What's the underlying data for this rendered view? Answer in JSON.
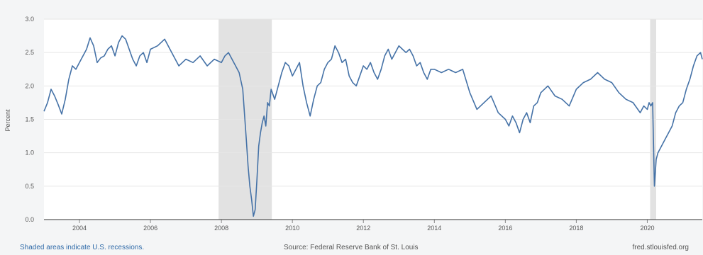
{
  "chart_data": {
    "type": "line",
    "ylabel": "Percent",
    "ylim": [
      0,
      3.0
    ],
    "y_ticks": [
      "0.0",
      "0.5",
      "1.0",
      "1.5",
      "2.0",
      "2.5",
      "3.0"
    ],
    "x_ticks": [
      "2004",
      "2006",
      "2008",
      "2010",
      "2012",
      "2014",
      "2016",
      "2018",
      "2020"
    ],
    "xlim": [
      2003.0,
      2021.55
    ],
    "grid": true,
    "line_color": "#4572a7",
    "recession_color": "#e2e2e2",
    "recessions": [
      [
        2007.92,
        2009.42
      ],
      [
        2020.08,
        2020.25
      ]
    ],
    "series": [
      {
        "x": [
          2003.0,
          2003.1,
          2003.2,
          2003.3,
          2003.4,
          2003.5,
          2003.6,
          2003.7,
          2003.8,
          2003.9,
          2004.0,
          2004.1,
          2004.2,
          2004.3,
          2004.4,
          2004.5,
          2004.6,
          2004.7,
          2004.8,
          2004.9,
          2005.0,
          2005.1,
          2005.2,
          2005.3,
          2005.4,
          2005.5,
          2005.6,
          2005.7,
          2005.8,
          2005.9,
          2006.0,
          2006.2,
          2006.4,
          2006.6,
          2006.8,
          2007.0,
          2007.2,
          2007.4,
          2007.6,
          2007.8,
          2008.0,
          2008.1,
          2008.2,
          2008.3,
          2008.4,
          2008.5,
          2008.6,
          2008.7,
          2008.75,
          2008.8,
          2008.85,
          2008.9,
          2008.95,
          2009.0,
          2009.05,
          2009.1,
          2009.15,
          2009.2,
          2009.25,
          2009.3,
          2009.35,
          2009.4,
          2009.5,
          2009.6,
          2009.7,
          2009.8,
          2009.9,
          2010.0,
          2010.1,
          2010.2,
          2010.3,
          2010.4,
          2010.5,
          2010.6,
          2010.7,
          2010.8,
          2010.9,
          2011.0,
          2011.1,
          2011.2,
          2011.3,
          2011.4,
          2011.5,
          2011.6,
          2011.7,
          2011.8,
          2011.9,
          2012.0,
          2012.1,
          2012.2,
          2012.3,
          2012.4,
          2012.5,
          2012.6,
          2012.7,
          2012.8,
          2012.9,
          2013.0,
          2013.1,
          2013.2,
          2013.3,
          2013.4,
          2013.5,
          2013.6,
          2013.7,
          2013.8,
          2013.9,
          2014.0,
          2014.2,
          2014.4,
          2014.6,
          2014.8,
          2015.0,
          2015.2,
          2015.4,
          2015.6,
          2015.8,
          2016.0,
          2016.1,
          2016.2,
          2016.3,
          2016.4,
          2016.5,
          2016.6,
          2016.7,
          2016.8,
          2016.9,
          2017.0,
          2017.2,
          2017.4,
          2017.6,
          2017.8,
          2018.0,
          2018.2,
          2018.4,
          2018.6,
          2018.8,
          2019.0,
          2019.2,
          2019.4,
          2019.6,
          2019.8,
          2019.9,
          2020.0,
          2020.05,
          2020.1,
          2020.15,
          2020.2,
          2020.25,
          2020.3,
          2020.4,
          2020.5,
          2020.6,
          2020.7,
          2020.8,
          2020.9,
          2021.0,
          2021.1,
          2021.2,
          2021.3,
          2021.4,
          2021.5,
          2021.55
        ],
        "y": [
          1.62,
          1.75,
          1.95,
          1.85,
          1.72,
          1.58,
          1.8,
          2.1,
          2.3,
          2.25,
          2.35,
          2.45,
          2.55,
          2.72,
          2.6,
          2.35,
          2.42,
          2.45,
          2.55,
          2.6,
          2.45,
          2.65,
          2.75,
          2.7,
          2.55,
          2.4,
          2.3,
          2.45,
          2.5,
          2.35,
          2.55,
          2.6,
          2.7,
          2.5,
          2.3,
          2.4,
          2.35,
          2.45,
          2.3,
          2.4,
          2.35,
          2.45,
          2.5,
          2.4,
          2.3,
          2.2,
          1.95,
          1.2,
          0.8,
          0.5,
          0.3,
          0.05,
          0.15,
          0.6,
          1.1,
          1.3,
          1.45,
          1.55,
          1.4,
          1.75,
          1.7,
          1.95,
          1.8,
          2.0,
          2.2,
          2.35,
          2.3,
          2.15,
          2.25,
          2.35,
          2.0,
          1.75,
          1.55,
          1.8,
          2.0,
          2.05,
          2.25,
          2.35,
          2.4,
          2.6,
          2.5,
          2.35,
          2.4,
          2.15,
          2.05,
          2.0,
          2.15,
          2.3,
          2.25,
          2.35,
          2.2,
          2.1,
          2.25,
          2.45,
          2.55,
          2.4,
          2.5,
          2.6,
          2.55,
          2.5,
          2.55,
          2.45,
          2.3,
          2.35,
          2.2,
          2.1,
          2.25,
          2.25,
          2.2,
          2.25,
          2.2,
          2.25,
          1.9,
          1.65,
          1.75,
          1.85,
          1.6,
          1.5,
          1.4,
          1.55,
          1.45,
          1.3,
          1.5,
          1.6,
          1.45,
          1.7,
          1.75,
          1.9,
          2.0,
          1.85,
          1.8,
          1.7,
          1.95,
          2.05,
          2.1,
          2.2,
          2.1,
          2.05,
          1.9,
          1.8,
          1.75,
          1.6,
          1.7,
          1.65,
          1.75,
          1.7,
          1.75,
          0.5,
          0.9,
          1.0,
          1.1,
          1.2,
          1.3,
          1.4,
          1.6,
          1.7,
          1.75,
          1.95,
          2.1,
          2.3,
          2.45,
          2.5,
          2.4
        ]
      }
    ]
  },
  "footer": {
    "recession_note": "Shaded areas indicate U.S. recessions.",
    "source": "Source: Federal Reserve Bank of St. Louis",
    "site": "fred.stlouisfed.org"
  }
}
